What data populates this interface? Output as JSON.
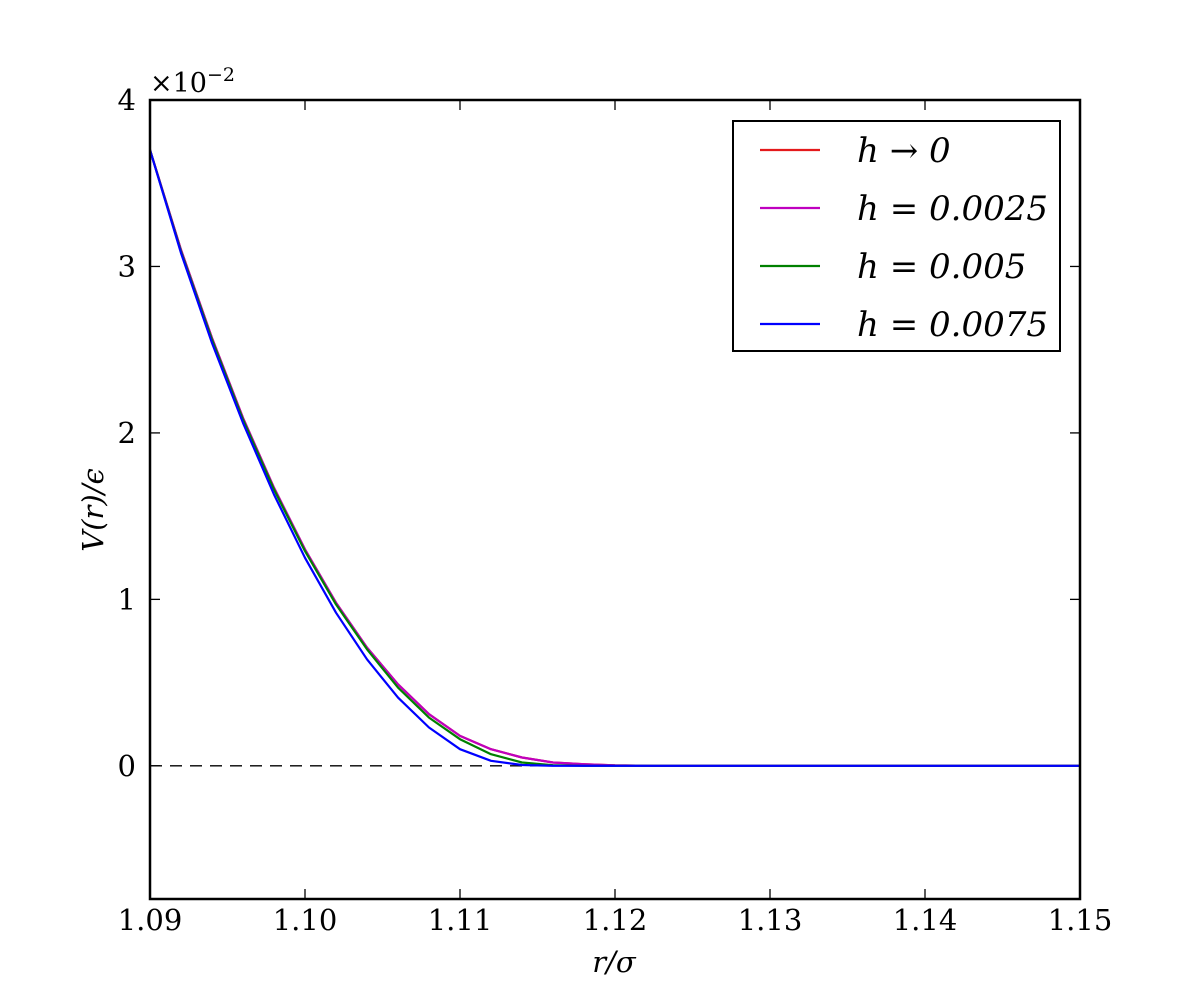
{
  "chart_data": {
    "type": "line",
    "xlabel": "r/σ",
    "ylabel": "V(r)/ϵ",
    "y_multiplier": "×10",
    "y_multiplier_exponent": "−2",
    "xlim": [
      1.09,
      1.15
    ],
    "ylim": [
      -0.8,
      4
    ],
    "x_ticks": [
      1.09,
      1.1,
      1.11,
      1.12,
      1.13,
      1.14,
      1.15
    ],
    "x_tick_labels": [
      "1.09",
      "1.10",
      "1.11",
      "1.12",
      "1.13",
      "1.14",
      "1.15"
    ],
    "y_ticks": [
      0,
      1,
      2,
      3,
      4
    ],
    "y_tick_labels": [
      "0",
      "1",
      "2",
      "3",
      "4"
    ],
    "grid": false,
    "legend_position": "top-right",
    "reference_line": {
      "y": 0,
      "style": "dashed",
      "color": "#000000"
    },
    "series": [
      {
        "name": "h → 0",
        "color": "#e41a1c",
        "x": [
          1.09,
          1.092,
          1.094,
          1.096,
          1.098,
          1.1,
          1.102,
          1.104,
          1.106,
          1.108,
          1.11,
          1.112,
          1.114,
          1.116,
          1.118,
          1.12,
          1.1225,
          1.13,
          1.14,
          1.15
        ],
        "y": [
          3.7,
          3.1,
          2.57,
          2.09,
          1.67,
          1.3,
          0.98,
          0.71,
          0.49,
          0.31,
          0.18,
          0.1,
          0.05,
          0.02,
          0.01,
          0.003,
          0.0,
          0.0,
          0.0,
          0.0
        ]
      },
      {
        "name": "h = 0.0025",
        "color": "#bf00bf",
        "x": [
          1.09,
          1.092,
          1.094,
          1.096,
          1.098,
          1.1,
          1.102,
          1.104,
          1.106,
          1.108,
          1.11,
          1.112,
          1.114,
          1.116,
          1.118,
          1.12,
          1.1225,
          1.13,
          1.14,
          1.15
        ],
        "y": [
          3.7,
          3.1,
          2.57,
          2.09,
          1.67,
          1.3,
          0.98,
          0.71,
          0.49,
          0.31,
          0.18,
          0.1,
          0.05,
          0.02,
          0.01,
          0.003,
          0.0,
          0.0,
          0.0,
          0.0
        ]
      },
      {
        "name": "h = 0.005",
        "color": "#008000",
        "x": [
          1.09,
          1.092,
          1.094,
          1.096,
          1.098,
          1.1,
          1.102,
          1.104,
          1.106,
          1.108,
          1.11,
          1.112,
          1.114,
          1.116,
          1.118,
          1.12,
          1.125,
          1.13,
          1.14,
          1.15
        ],
        "y": [
          3.7,
          3.09,
          2.56,
          2.08,
          1.66,
          1.29,
          0.97,
          0.7,
          0.47,
          0.29,
          0.16,
          0.07,
          0.02,
          0.004,
          0.0,
          0.0,
          0.0,
          0.0,
          0.0,
          0.0
        ]
      },
      {
        "name": "h = 0.0075",
        "color": "#0000ff",
        "x": [
          1.09,
          1.092,
          1.094,
          1.096,
          1.098,
          1.1,
          1.102,
          1.104,
          1.106,
          1.108,
          1.11,
          1.112,
          1.114,
          1.116,
          1.118,
          1.12,
          1.125,
          1.13,
          1.14,
          1.15
        ],
        "y": [
          3.7,
          3.08,
          2.54,
          2.06,
          1.63,
          1.25,
          0.92,
          0.64,
          0.41,
          0.23,
          0.1,
          0.03,
          0.005,
          0.0,
          0.0,
          0.0,
          0.0,
          0.0,
          0.0,
          0.0
        ]
      }
    ]
  }
}
